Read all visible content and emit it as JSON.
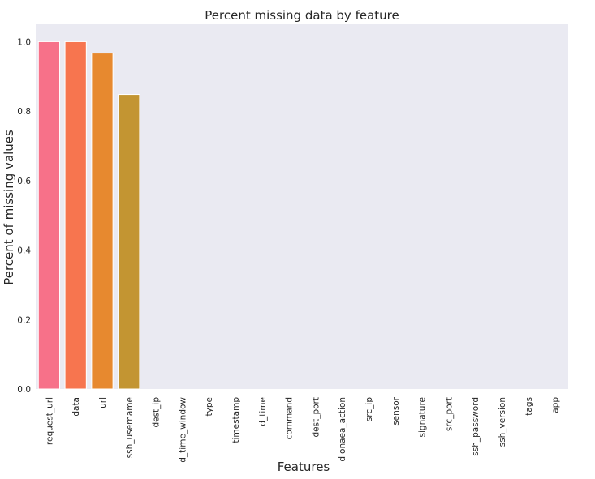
{
  "chart_data": {
    "type": "bar",
    "title": "Percent missing data by feature",
    "xlabel": "Features",
    "ylabel": "Percent of missing values",
    "categories": [
      "request_url",
      "data",
      "url",
      "ssh_username",
      "dest_ip",
      "d_time_window",
      "type",
      "timestamp",
      "d_time",
      "command",
      "dest_port",
      "dionaea_action",
      "src_ip",
      "sensor",
      "signature",
      "src_port",
      "ssh_password",
      "ssh_version",
      "tags",
      "app"
    ],
    "values": [
      1.0,
      1.0,
      0.967,
      0.848,
      0,
      0,
      0,
      0,
      0,
      0,
      0,
      0,
      0,
      0,
      0,
      0,
      0,
      0,
      0,
      0
    ],
    "ylim": [
      0,
      1.05
    ],
    "yticks": [
      "0.0",
      "0.2",
      "0.4",
      "0.6",
      "0.8",
      "1.0"
    ],
    "grid": false,
    "colors": [
      "#f77189",
      "#f7754f",
      "#e7892f",
      "#c39532",
      "#b09c31",
      "#97a431",
      "#73ad32",
      "#33b334",
      "#34b074",
      "#35ad8f",
      "#36aba1",
      "#37a9b1",
      "#38a6c3",
      "#3aa3d9",
      "#5e9bf4",
      "#8d8ff4",
      "#ae7ff4",
      "#d26bf4",
      "#f45fd8",
      "#f56bb5"
    ],
    "plot_background": "#eaeaf2"
  }
}
